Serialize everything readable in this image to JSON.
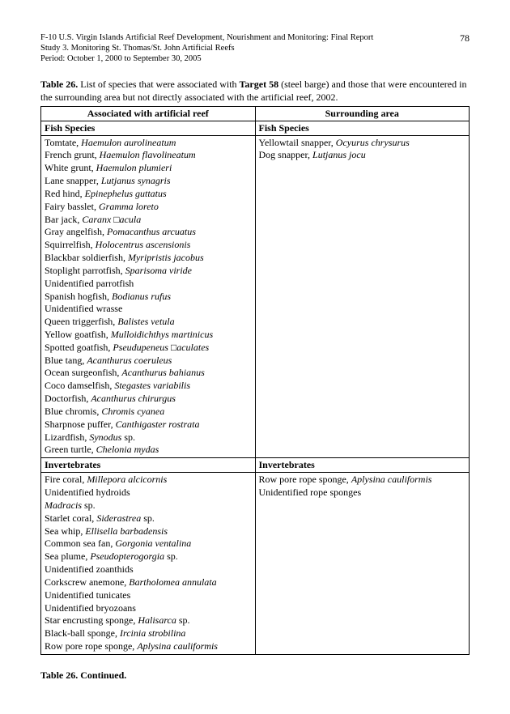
{
  "header": {
    "line1": "F-10 U.S. Virgin Islands Artificial Reef Development, Nourishment and Monitoring: Final Report",
    "line2": "Study 3.  Monitoring St. Thomas/St. John Artificial Reefs",
    "line3": "Period:  October 1, 2000 to September 30, 2005",
    "page": "78"
  },
  "caption": {
    "lead": "Table 26.",
    "text1": "  List of species that were associated with ",
    "bold": "Target 58",
    "text2": " (steel barge) and those that were encountered in the surrounding area but not directly associated with the artificial reef, 2002."
  },
  "table": {
    "col1_header": "Associated with artificial reef",
    "col2_header": "Surrounding area",
    "fish_label": "Fish Species",
    "invert_label": "Invertebrates",
    "reef_fish": [
      {
        "c": "Tomtate, ",
        "i": "Haemulon aurolineatum"
      },
      {
        "c": "French grunt, ",
        "i": "Haemulon flavolineatum"
      },
      {
        "c": "White grunt, ",
        "i": "Haemulon plumieri"
      },
      {
        "c": "Lane snapper, ",
        "i": "Lutjanus synagris"
      },
      {
        "c": "Red hind, ",
        "i": "Epinephelus guttatus"
      },
      {
        "c": "Fairy basslet, ",
        "i": "Gramma loreto"
      },
      {
        "c": "Bar jack, ",
        "i": "Caranx □acula"
      },
      {
        "c": "Gray angelfish, ",
        "i": "Pomacanthus arcuatus"
      },
      {
        "c": "Squirrelfish, ",
        "i": "Holocentrus ascensionis"
      },
      {
        "c": "Blackbar soldierfish, ",
        "i": "Myripristis jacobus"
      },
      {
        "c": "Stoplight parrotfish, ",
        "i": "Sparisoma viride"
      },
      {
        "c": "Unidentified parrotfish",
        "i": ""
      },
      {
        "c": "Spanish hogfish, ",
        "i": "Bodianus rufus"
      },
      {
        "c": "Unidentified wrasse",
        "i": ""
      },
      {
        "c": "Queen triggerfish, ",
        "i": "Balistes vetula"
      },
      {
        "c": "Yellow goatfish, ",
        "i": "Mulloidichthys martinicus"
      },
      {
        "c": "Spotted goatfish, ",
        "i": "Pseudupeneus □aculates"
      },
      {
        "c": "Blue tang, ",
        "i": "Acanthurus coeruleus"
      },
      {
        "c": "Ocean surgeonfish, ",
        "i": "Acanthurus bahianus"
      },
      {
        "c": "Coco damselfish, ",
        "i": "Stegastes variabilis"
      },
      {
        "c": "Doctorfish, ",
        "i": "Acanthurus chirurgus"
      },
      {
        "c": "Blue chromis, ",
        "i": "Chromis cyanea"
      },
      {
        "c": "Sharpnose puffer, ",
        "i": "Canthigaster rostrata"
      },
      {
        "c": "Lizardfish, ",
        "i": "Synodus ",
        "t": "sp."
      },
      {
        "c": "Green turtle, ",
        "i": "Chelonia mydas"
      }
    ],
    "surround_fish": [
      {
        "c": "Yellowtail snapper, ",
        "i": "Ocyurus chrysurus"
      },
      {
        "c": "Dog snapper, ",
        "i": "Lutjanus jocu"
      }
    ],
    "reef_invert": [
      {
        "c": "Fire coral, ",
        "i": "Millepora alcicornis"
      },
      {
        "c": "Unidentified hydroids",
        "i": ""
      },
      {
        "c": "",
        "i": "Madracis ",
        "t": "sp."
      },
      {
        "c": "Starlet coral, ",
        "i": "Siderastrea ",
        "t": "sp."
      },
      {
        "c": "Sea whip, ",
        "i": "Ellisella barbadensis"
      },
      {
        "c": "Common sea fan, ",
        "i": "Gorgonia ventalina"
      },
      {
        "c": "Sea plume, ",
        "i": "Pseudopterogorgia ",
        "t": "sp."
      },
      {
        "c": "Unidentified zoanthids",
        "i": ""
      },
      {
        "c": "Corkscrew anemone, ",
        "i": "Bartholomea annulata"
      },
      {
        "c": "Unidentified tunicates",
        "i": ""
      },
      {
        "c": "Unidentified bryozoans",
        "i": ""
      },
      {
        "c": "Star encrusting sponge, ",
        "i": "Halisarca ",
        "t": "sp."
      },
      {
        "c": "Black-ball sponge, ",
        "i": "Ircinia strobilina"
      },
      {
        "c": "Row pore rope sponge, ",
        "i": "Aplysina cauliformis"
      }
    ],
    "surround_invert": [
      {
        "c": "Row pore rope sponge, ",
        "i": "Aplysina cauliformis"
      },
      {
        "c": "Unidentified rope sponges",
        "i": ""
      }
    ]
  },
  "continued": "Table 26.  Continued."
}
